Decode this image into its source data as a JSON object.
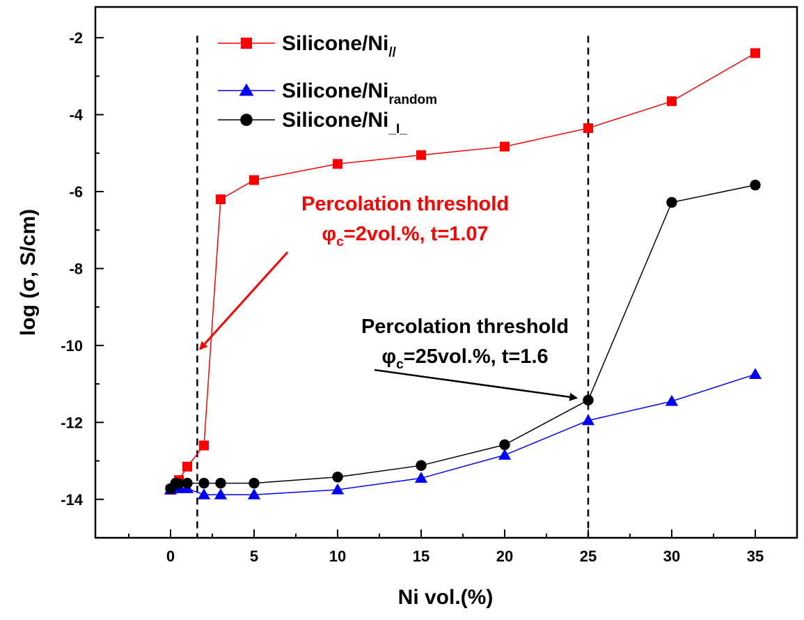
{
  "chart_data": {
    "type": "line",
    "xlabel": "Ni vol.(%)",
    "ylabel": "log (σ, S/cm)",
    "xlim": [
      -4.5,
      37.5
    ],
    "ylim": [
      -15,
      -1.2
    ],
    "x_ticks": [
      0,
      5,
      10,
      15,
      20,
      25,
      30,
      35
    ],
    "y_ticks": [
      -14,
      -12,
      -10,
      -8,
      -6,
      -4,
      -2
    ],
    "grid": false,
    "legend_position": "top-left",
    "series": [
      {
        "name_main": "Silicone/Ni",
        "name_sub": "//",
        "color": "#ff0000",
        "marker": "square",
        "x": [
          0,
          0.3,
          0.5,
          1,
          2,
          3,
          5,
          10,
          15,
          20,
          25,
          30,
          35
        ],
        "y": [
          -13.75,
          -13.65,
          -13.5,
          -13.15,
          -12.6,
          -6.2,
          -5.7,
          -5.28,
          -5.05,
          -4.83,
          -4.35,
          -3.65,
          -2.4
        ]
      },
      {
        "name_main": "Silicone/Ni",
        "name_sub": "random",
        "color": "#0000ff",
        "marker": "triangle",
        "x": [
          0,
          0.3,
          0.5,
          1,
          2,
          3,
          5,
          10,
          15,
          20,
          25,
          30,
          35
        ],
        "y": [
          -13.75,
          -13.72,
          -13.7,
          -13.72,
          -13.88,
          -13.88,
          -13.88,
          -13.75,
          -13.45,
          -12.85,
          -11.95,
          -11.45,
          -10.75
        ]
      },
      {
        "name_main": "Silicone/Ni",
        "name_sub": "_I_",
        "color": "#000000",
        "marker": "circle",
        "x": [
          0,
          0.3,
          0.5,
          1,
          2,
          3,
          5,
          10,
          15,
          20,
          25,
          30,
          35
        ],
        "y": [
          -13.72,
          -13.58,
          -13.6,
          -13.58,
          -13.58,
          -13.58,
          -13.58,
          -13.42,
          -13.12,
          -12.58,
          -11.42,
          -6.28,
          -5.83
        ]
      }
    ],
    "threshold_lines_x": [
      1.6,
      25
    ],
    "annotations": [
      {
        "line1": "Percolation threshold",
        "line2_prefix": "φ",
        "line2_sub": "c",
        "line2_rest": "=2vol.%, t=1.07",
        "color": "#ff0000",
        "arrow_to": [
          1.6,
          -10.2
        ]
      },
      {
        "line1": "Percolation threshold",
        "line2_prefix": "φ",
        "line2_sub": "c",
        "line2_rest": "=25vol.%, t=1.6",
        "color": "#000000",
        "arrow_to": [
          24.8,
          -11.4
        ]
      }
    ]
  }
}
